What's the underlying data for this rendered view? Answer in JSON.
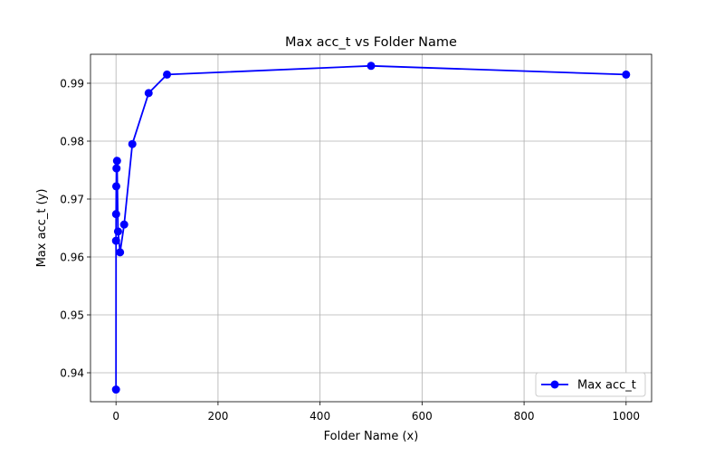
{
  "chart_data": {
    "type": "line",
    "title": "Max acc_t vs Folder Name",
    "xlabel": "Folder Name (x)",
    "ylabel": "Max acc_t (y)",
    "xlim": [
      -50,
      1050
    ],
    "ylim": [
      0.935,
      0.995
    ],
    "x_ticks": [
      0,
      200,
      400,
      600,
      800,
      1000
    ],
    "x_tick_labels": [
      "0",
      "200",
      "400",
      "600",
      "800",
      "1000"
    ],
    "y_ticks": [
      0.94,
      0.95,
      0.96,
      0.97,
      0.98,
      0.99
    ],
    "y_tick_labels": [
      "0.94",
      "0.95",
      "0.96",
      "0.97",
      "0.98",
      "0.99"
    ],
    "grid": true,
    "legend": {
      "position": "lower-right"
    },
    "series": [
      {
        "name": "Max acc_t",
        "color": "#0000ff",
        "marker": "circle",
        "points": [
          {
            "x": 0,
            "y": 0.9371
          },
          {
            "x": 0.1,
            "y": 0.9628
          },
          {
            "x": 0.2,
            "y": 0.9674
          },
          {
            "x": 0.5,
            "y": 0.9722
          },
          {
            "x": 1,
            "y": 0.9753
          },
          {
            "x": 2,
            "y": 0.9766
          },
          {
            "x": 4,
            "y": 0.9644
          },
          {
            "x": 8,
            "y": 0.9608
          },
          {
            "x": 16,
            "y": 0.9656
          },
          {
            "x": 32,
            "y": 0.9795
          },
          {
            "x": 64,
            "y": 0.9883
          },
          {
            "x": 100,
            "y": 0.9915
          },
          {
            "x": 500,
            "y": 0.993
          },
          {
            "x": 1000,
            "y": 0.9915
          }
        ]
      }
    ]
  }
}
